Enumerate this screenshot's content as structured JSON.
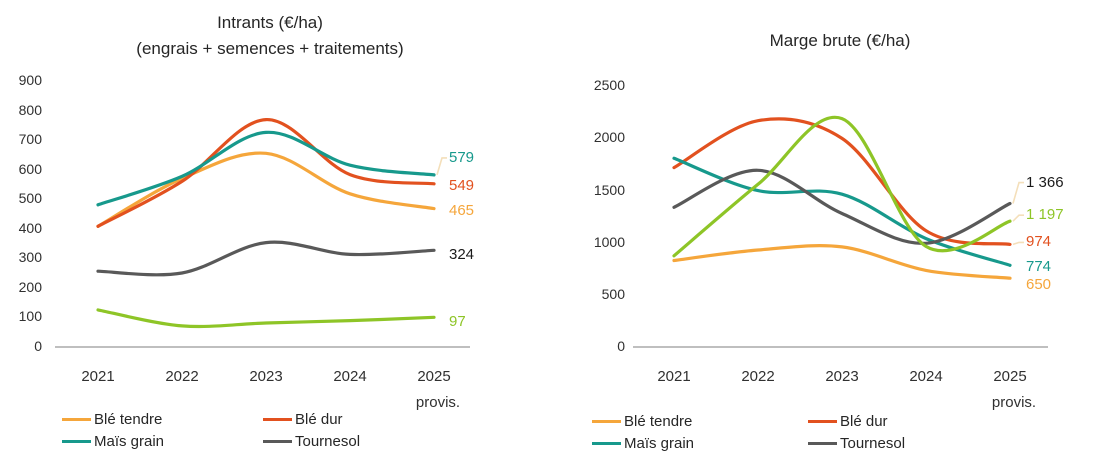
{
  "page": {
    "background": "#ffffff",
    "description_visible_elements": "two smoothed line charts with bottom legends"
  },
  "colors": {
    "ble_tendre": "#F5A63B",
    "ble_dur": "#E2511F",
    "mais_grain": "#17998C",
    "tournesol": "#595959",
    "unlabeled_green": "#8EC527",
    "axis_line": "#BFBFBF",
    "leader_line": "#F4DFBA",
    "dark_label": "#1A1A1A",
    "text": "#262626"
  },
  "chart_data": [
    {
      "type": "line",
      "title": "Intrants (€/ha)",
      "subtitle": "(engrais + semences + traitements)",
      "categories": [
        "2021",
        "2022",
        "2023",
        "2024",
        "2025 provis."
      ],
      "ylim": [
        0,
        900
      ],
      "ytick_step": 100,
      "grid": false,
      "legend_position": "bottom",
      "series": [
        {
          "name": "Blé tendre",
          "color": "#F5A63B",
          "values": [
            405,
            567,
            652,
            515,
            465
          ],
          "end_label": "465",
          "in_legend": true
        },
        {
          "name": "Blé dur",
          "color": "#E2511F",
          "values": [
            405,
            557,
            766,
            580,
            549
          ],
          "end_label": "549",
          "in_legend": true
        },
        {
          "name": "Maïs grain",
          "color": "#17998C",
          "values": [
            478,
            574,
            723,
            612,
            579
          ],
          "end_label": "579",
          "in_legend": true
        },
        {
          "name": "Tournesol",
          "color": "#595959",
          "values": [
            253,
            247,
            350,
            310,
            324
          ],
          "end_label": "324",
          "end_label_color": "#1A1A1A",
          "in_legend": true
        },
        {
          "name": "",
          "color": "#8EC527",
          "values": [
            122,
            68,
            78,
            86,
            97
          ],
          "end_label": "97",
          "in_legend": false
        }
      ]
    },
    {
      "type": "line",
      "title": "Marge brute (€/ha)",
      "subtitle": "",
      "categories": [
        "2021",
        "2022",
        "2023",
        "2024",
        "2025 provis."
      ],
      "ylim": [
        0,
        2500
      ],
      "ytick_step": 500,
      "grid": false,
      "legend_position": "bottom",
      "series": [
        {
          "name": "Blé tendre",
          "color": "#F5A63B",
          "values": [
            820,
            920,
            950,
            725,
            650
          ],
          "end_label": "650",
          "in_legend": true
        },
        {
          "name": "Blé dur",
          "color": "#E2511F",
          "values": [
            1710,
            2160,
            1990,
            1105,
            974
          ],
          "end_label": "974",
          "in_legend": true
        },
        {
          "name": "Maïs grain",
          "color": "#17998C",
          "values": [
            1800,
            1490,
            1455,
            1030,
            774
          ],
          "end_label": "774",
          "in_legend": true
        },
        {
          "name": "Tournesol",
          "color": "#595959",
          "values": [
            1330,
            1685,
            1270,
            985,
            1366
          ],
          "end_label": "1 366",
          "end_label_color": "#1A1A1A",
          "in_legend": true
        },
        {
          "name": "",
          "color": "#8EC527",
          "values": [
            865,
            1550,
            2180,
            955,
            1197
          ],
          "end_label": "1 197",
          "in_legend": false
        }
      ]
    }
  ]
}
